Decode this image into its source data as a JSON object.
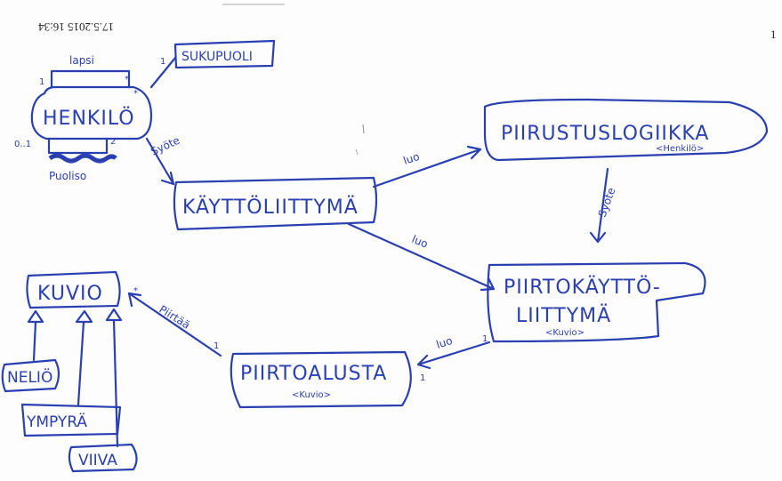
{
  "scan": {
    "timestamp": "17.5.2015 16:34",
    "page_number": "1"
  },
  "nodes": {
    "henkilo": "HENKILÖ",
    "sukupuoli": "SUKUPUOLI",
    "kayttoliittyma": "KÄYTTÖLIITTYMÄ",
    "piirustoslogiikka": "PIIRUSTUSLOGIIKKA",
    "piirustoslogiikka_type": "<Henkilö>",
    "piirtokayttoliittyma_1": "PIIRTOKÄYTTÖ-",
    "piirtokayttoliittyma_2": "LIITTYMÄ",
    "piirtokayttoliittyma_type": "<Kuvio>",
    "piirtoalusta": "PIIRTOALUSTA",
    "piirtoalusta_type": "<Kuvio>",
    "kuvio": "KUVIO",
    "nelio": "NELIÖ",
    "ympyra": "YMPYRÄ",
    "viiva": "VIIVA"
  },
  "edges": {
    "lapsi": "lapsi",
    "puoliso": "Puoliso",
    "syote_1": "Syöte",
    "syote_2": "Syöte",
    "luo_1": "luo",
    "luo_2": "luo",
    "luo_3": "luo",
    "piirtaa": "Piirtää"
  },
  "multiplicities": {
    "m_lapsi_left": "1",
    "m_lapsi_right": "*",
    "m_henkilo_top": "*",
    "m_sukupuoli": "1",
    "m_puoliso_left": "0..1",
    "m_puoliso_right": "2",
    "m_piirtaa_star": "*",
    "m_piirtaa_one": "1",
    "m_luo3_one": "1",
    "m_luo3_one_b": "1"
  }
}
